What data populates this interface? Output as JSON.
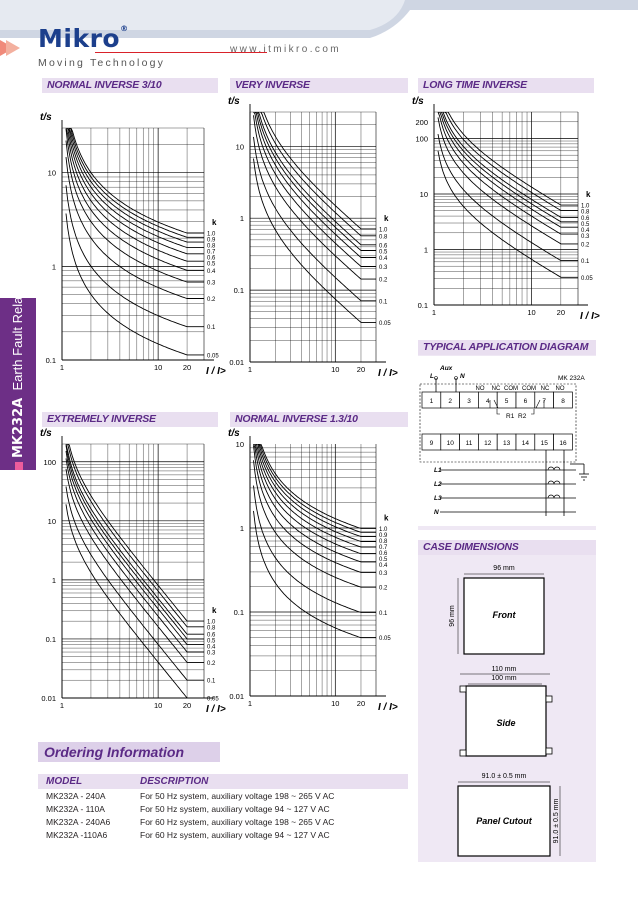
{
  "header": {
    "brand": "Mikro",
    "registered": "®",
    "tagline": "Moving Technology",
    "website": "www.itmikro.com"
  },
  "side_tab": {
    "model": "MK232A",
    "product": "Earth Fault Relay"
  },
  "curves": [
    {
      "title": "NORMAL INVERSE 3/10",
      "k_label": "k",
      "k_values": [
        "1.0",
        "0.9",
        "0.8",
        "0.7",
        "0.6",
        "0.5",
        "0.4",
        "0.3",
        "0.2",
        "0.1",
        "0.05"
      ],
      "y_axis_label": "t/s",
      "x_axis_label": "I / I>",
      "y_ticks": [
        "10",
        "1",
        "0.1"
      ],
      "x_ticks": [
        "1",
        "10",
        "20"
      ]
    },
    {
      "title": "VERY INVERSE",
      "k_label": "k",
      "k_values": [
        "1.0",
        "0.8",
        "0.6",
        "0.5",
        "0.4",
        "0.3",
        "0.2",
        "0.1",
        "0.05"
      ],
      "y_axis_label": "t/s",
      "x_axis_label": "I / I>",
      "y_ticks": [
        "10",
        "1",
        "0.1",
        "0.01"
      ],
      "x_ticks": [
        "1",
        "10",
        "20"
      ]
    },
    {
      "title": "LONG TIME INVERSE",
      "k_label": "k",
      "k_values": [
        "1.0",
        "0.8",
        "0.6",
        "0.5",
        "0.4",
        "0.3",
        "0.2",
        "0.1",
        "0.05"
      ],
      "y_axis_label": "t/s",
      "x_axis_label": "I / I>",
      "y_ticks": [
        "200",
        "100",
        "10",
        "1",
        "0.1"
      ],
      "x_ticks": [
        "1",
        "10",
        "20"
      ]
    },
    {
      "title": "EXTREMELY INVERSE",
      "k_label": "k",
      "k_values": [
        "1.0",
        "0.8",
        "0.6",
        "0.5",
        "0.4",
        "0.3",
        "0.2",
        "0.1",
        "0.05"
      ],
      "y_axis_label": "t/s",
      "x_axis_label": "I / I>",
      "y_ticks": [
        "100",
        "10",
        "1",
        "0.1",
        "0.01"
      ],
      "x_ticks": [
        "1",
        "10",
        "20"
      ]
    },
    {
      "title": "NORMAL INVERSE 1.3/10",
      "k_label": "k",
      "k_values": [
        "1.0",
        "0.9",
        "0.8",
        "0.7",
        "0.6",
        "0.5",
        "0.4",
        "0.3",
        "0.2",
        "0.1",
        "0.05"
      ],
      "y_axis_label": "t/s",
      "x_axis_label": "I / I>",
      "y_ticks": [
        "10",
        "1",
        "0.1",
        "0.01"
      ],
      "x_ticks": [
        "1",
        "10",
        "20"
      ]
    }
  ],
  "application_diagram": {
    "title": "TYPICAL APPLICATION DIAGRAM",
    "device": "MK 232A",
    "aux_label": "Aux",
    "supply_l": "L",
    "supply_n": "N",
    "contact_labels": [
      "NO",
      "NC",
      "COM",
      "COM",
      "NC",
      "NO"
    ],
    "relays": [
      "R1",
      "R2"
    ],
    "top_terminals": [
      "1",
      "2",
      "3",
      "4",
      "5",
      "6",
      "7",
      "8"
    ],
    "bottom_terminals": [
      "9",
      "10",
      "11",
      "12",
      "13",
      "14",
      "15",
      "16"
    ],
    "lines": [
      "L1",
      "L2",
      "L3",
      "N"
    ]
  },
  "case_dimensions": {
    "title": "CASE DIMENSIONS",
    "front_width": "96 mm",
    "front_height": "96 mm",
    "front_label": "Front",
    "side_outer": "110 mm",
    "side_inner": "100 mm",
    "side_label": "Side",
    "cutout_width": "91.0 ± 0.5 mm",
    "cutout_height": "91.0 ± 0.5 mm",
    "cutout_label": "Panel Cutout"
  },
  "ordering": {
    "title": "Ordering Information",
    "col_model": "MODEL",
    "col_description": "DESCRIPTION",
    "rows": [
      {
        "model": "MK232A - 240A",
        "description": "For  50 Hz system, auxiliary voltage 198 ~ 265 V AC"
      },
      {
        "model": "MK232A - 110A",
        "description": "For  50 Hz system, auxiliary voltage 94 ~ 127 V AC"
      },
      {
        "model": "MK232A - 240A6",
        "description": "For  60 Hz system, auxiliary voltage 198 ~ 265 V AC"
      },
      {
        "model": "MK232A -110A6",
        "description": "For  60 Hz system, auxiliary voltage 94 ~ 127 V AC"
      }
    ]
  },
  "colors": {
    "brand_blue": "#1c3f8c",
    "purple": "#5b2a86",
    "title_bg": "#e9dff0",
    "accent_red": "#d9222a"
  }
}
